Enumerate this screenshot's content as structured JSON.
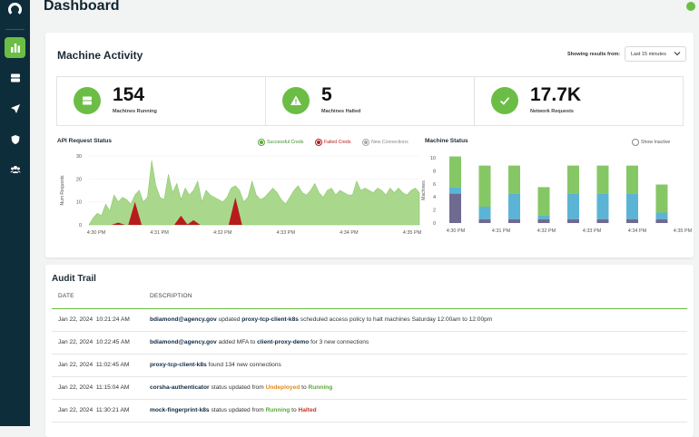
{
  "page": {
    "title": "Dashboard"
  },
  "sidebar": {
    "icons": [
      "logo-icon",
      "bar-chart-icon",
      "server-icon",
      "send-icon",
      "shield-icon",
      "users-icon"
    ],
    "accent": "#6cbd45",
    "bg": "#0e2d3a"
  },
  "activity": {
    "title": "Machine Activity",
    "range_label": "Showing results from:",
    "range_value": "Last 15 minutes",
    "stats": [
      {
        "value": "154",
        "label": "Machines Running",
        "icon": "server-icon"
      },
      {
        "value": "5",
        "label": "Machines Halted",
        "icon": "warning-icon"
      },
      {
        "value": "17.7K",
        "label": "Network Requests",
        "icon": "check-icon"
      }
    ]
  },
  "api_chart": {
    "title": "API Request Status",
    "legend": [
      "Successful Creds",
      "Failed Creds",
      "New Connections"
    ]
  },
  "machine_chart": {
    "title": "Machine Status",
    "show_inactive": "Show Inactive"
  },
  "chart_data": [
    {
      "type": "area",
      "title": "API Request Status",
      "ylabel": "Num Requests",
      "ylim": [
        0,
        30
      ],
      "yticks": [
        "0",
        "10",
        "20",
        "30"
      ],
      "xticks": [
        "4:30 PM",
        "4:31 PM",
        "4:32 PM",
        "4:33 PM",
        "4:34 PM",
        "4:35 PM"
      ],
      "series": [
        {
          "name": "Successful Creds",
          "color": "#a9d88c",
          "values": [
            0,
            3,
            5,
            4,
            9,
            6,
            13,
            10,
            12,
            11,
            9,
            13,
            15,
            10,
            12,
            28,
            17,
            12,
            11,
            22,
            14,
            18,
            11,
            16,
            13,
            15,
            19,
            10,
            15,
            13,
            12,
            11,
            10,
            12,
            16,
            17,
            15,
            10,
            12,
            19,
            13,
            11,
            12,
            14,
            16,
            14,
            11,
            9,
            12,
            15,
            17,
            14,
            13,
            15,
            18,
            14,
            12,
            15,
            16,
            13,
            15,
            14,
            13,
            13,
            19,
            15,
            16,
            15,
            14,
            16,
            15,
            13,
            16,
            14,
            16,
            14,
            13,
            15,
            16,
            14
          ]
        },
        {
          "name": "Failed Creds",
          "color": "#b71c1c",
          "values": [
            0,
            0,
            0,
            0,
            0,
            0,
            0,
            1,
            0,
            0,
            0,
            10,
            0,
            0,
            0,
            0,
            0,
            0,
            0,
            0,
            0,
            0,
            4,
            0,
            0,
            2,
            0,
            0,
            0,
            0,
            0,
            0,
            0,
            0,
            0,
            12,
            0,
            0,
            0,
            0,
            0,
            0,
            0,
            0,
            0,
            0,
            0,
            0,
            0,
            0,
            0,
            0,
            0,
            0,
            0,
            0,
            0,
            0,
            0,
            0,
            0,
            0,
            0,
            0,
            0,
            0,
            0,
            0,
            0,
            0,
            0,
            0,
            0,
            0,
            0,
            0,
            0,
            0,
            0,
            0
          ]
        },
        {
          "name": "New Connections",
          "color": "#b8b8b8",
          "values": []
        }
      ]
    },
    {
      "type": "bar",
      "title": "Machine Status",
      "ylabel": "Machines",
      "ylim": [
        0,
        10
      ],
      "yticks": [
        "0",
        "2",
        "4",
        "6",
        "8",
        "10"
      ],
      "categories": [
        "4:30 PM",
        "4:31 PM",
        "4:32 PM",
        "4:33 PM",
        "4:34 PM",
        "4:35 PM"
      ],
      "bars": [
        {
          "purple": 4.5,
          "blue": 1.0,
          "green": 4.7
        },
        {
          "purple": 0.6,
          "blue": 1.9,
          "green": 6.3
        },
        {
          "purple": 0.6,
          "blue": 3.9,
          "green": 4.3
        },
        {
          "purple": 0.6,
          "blue": 0.6,
          "green": 4.3
        },
        {
          "purple": 0.6,
          "blue": 3.9,
          "green": 4.3
        },
        {
          "purple": 0.6,
          "blue": 3.9,
          "green": 4.3
        },
        {
          "purple": 0.6,
          "blue": 3.9,
          "green": 4.3
        },
        {
          "purple": 0.6,
          "blue": 1.0,
          "green": 4.3
        }
      ],
      "colors": {
        "purple": "#6f6a8f",
        "blue": "#5bb4d6",
        "green": "#86c765"
      }
    }
  ],
  "audit": {
    "title": "Audit Trail",
    "columns": [
      "DATE",
      "DESCRIPTION"
    ],
    "rows": [
      {
        "date": "Jan 22, 2024",
        "time": "10:21:24 AM",
        "actor": "bdiamond@agency.gov",
        "text1": "updated",
        "target": "proxy-tcp-client-k8s",
        "text2": "scheduled access policy to halt machines Saturday 12:00am to 12:00pm"
      },
      {
        "date": "Jan 22, 2024",
        "time": "10:22:45 AM",
        "actor": "bdiamond@agency.gov",
        "text1": "added MFA to",
        "target": "client-proxy-demo",
        "text2": "for 3 new connections"
      },
      {
        "date": "Jan 22, 2024",
        "time": "11:02:45 AM",
        "actor": "proxy-tcp-client-k8s",
        "text1": "found 134 new connections",
        "target": "",
        "text2": ""
      },
      {
        "date": "Jan 22, 2024",
        "time": "11:15:04 AM",
        "actor": "corsha-authenticator",
        "text1": "status updated from",
        "from": "Undeployed",
        "to_word": "to",
        "to": "Running"
      },
      {
        "date": "Jan 22, 2024",
        "time": "11:30:21 AM",
        "actor": "mock-fingerprint-k8s",
        "text1": "status updated from",
        "from": "Running",
        "to_word": "to",
        "to": "Halted"
      }
    ]
  }
}
